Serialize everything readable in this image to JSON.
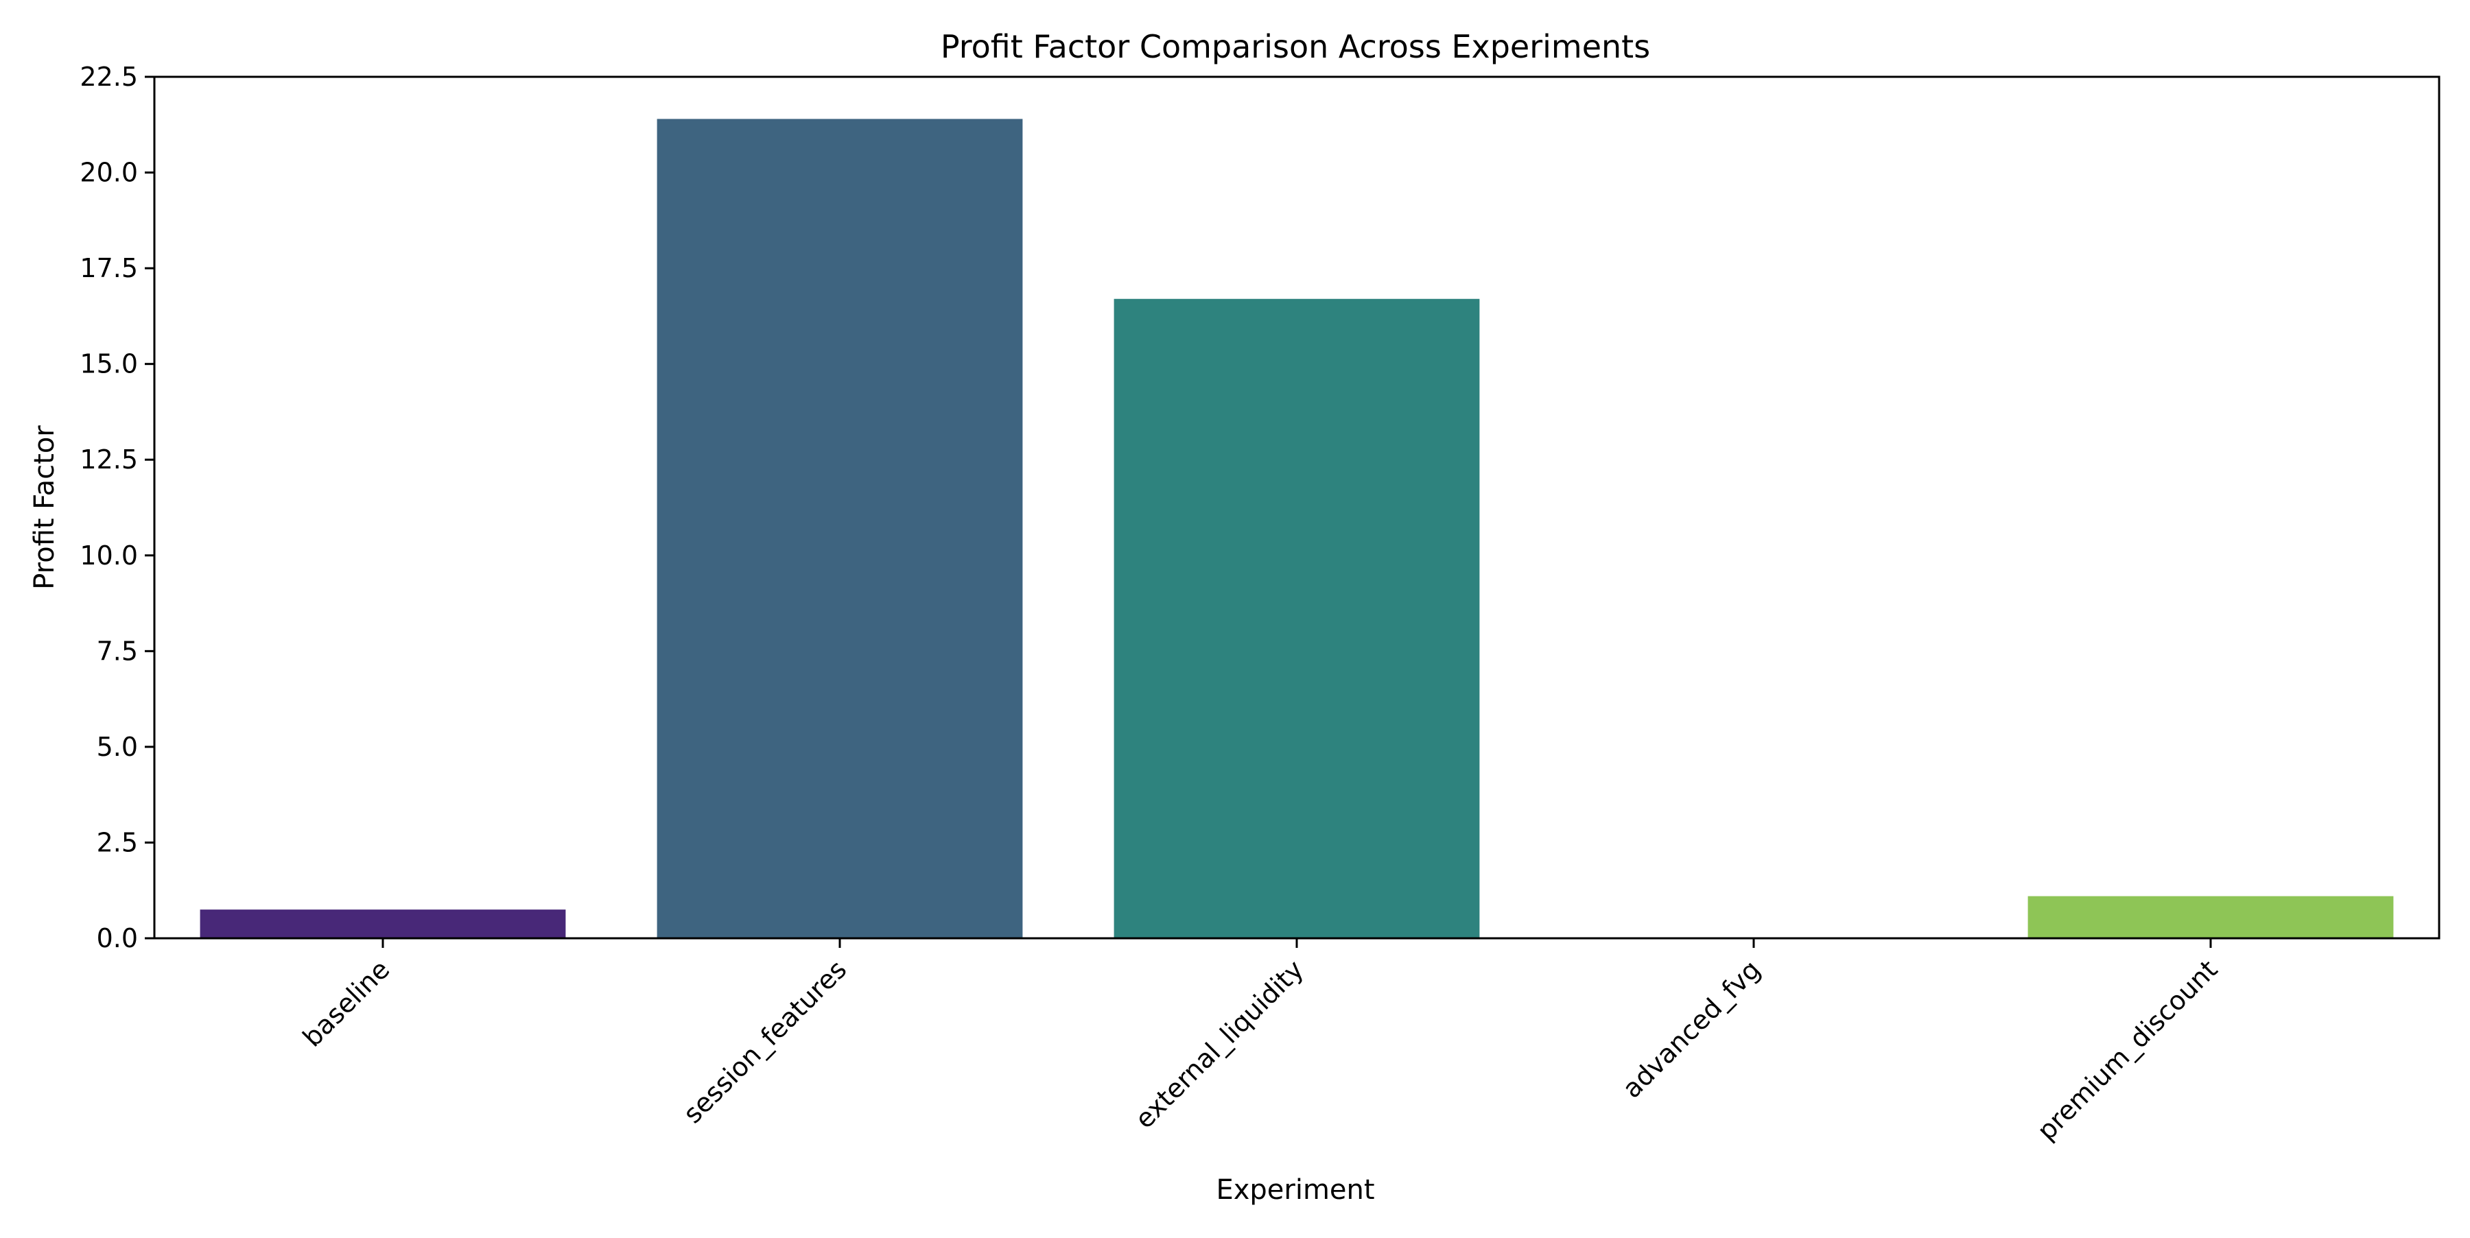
{
  "chart_data": {
    "type": "bar",
    "title": "Profit Factor Comparison Across Experiments",
    "xlabel": "Experiment",
    "ylabel": "Profit Factor",
    "categories": [
      "baseline",
      "session_features",
      "external_liquidity",
      "advanced_fvg",
      "premium_discount"
    ],
    "values": [
      0.75,
      21.4,
      16.7,
      0.0,
      1.1
    ],
    "colors": [
      "#482878",
      "#3e6480",
      "#2e837e",
      "#3cb97a",
      "#8ec556"
    ],
    "ylim": [
      0,
      22.5
    ],
    "yticks": [
      "0.0",
      "2.5",
      "5.0",
      "7.5",
      "10.0",
      "12.5",
      "15.0",
      "17.5",
      "20.0",
      "22.5"
    ],
    "grid": false,
    "legend": "none",
    "xtick_rotation_deg": 45
  }
}
